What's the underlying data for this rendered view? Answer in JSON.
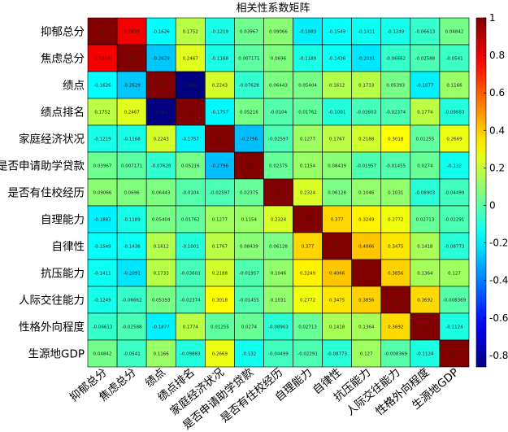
{
  "chart_data": {
    "type": "heatmap",
    "title": "相关性系数矩阵",
    "labels": [
      "抑郁总分",
      "焦虑总分",
      "绩点",
      "绩点排名",
      "家庭经济状况",
      "是否申请助学贷款",
      "是否有住校经历",
      "自理能力",
      "自律性",
      "抗压能力",
      "人际交往能力",
      "性格外向程度",
      "生源地GDP"
    ],
    "matrix": [
      [
        "1",
        "0.7859",
        "-0.1626",
        "0.1752",
        "-0.1219",
        "0.03967",
        "0.09066",
        "-0.1883",
        "-0.1549",
        "-0.1411",
        "-0.1249",
        "-0.06613",
        "0.04842"
      ],
      [
        "0.7859",
        "1",
        "-0.2629",
        "0.2467",
        "-0.1168",
        "0.007171",
        "0.0696",
        "-0.1189",
        "-0.1436",
        "-0.2091",
        "-0.06662",
        "-0.02588",
        "-0.0541"
      ],
      [
        "-0.1626",
        "-0.2629",
        "1",
        "-0.861",
        "0.2243",
        "-0.07628",
        "0.06443",
        "0.05404",
        "0.1612",
        "0.1733",
        "0.05393",
        "-0.1877",
        "0.1166"
      ],
      [
        "0.1752",
        "0.2467",
        "-0.861",
        "1",
        "-0.1757",
        "0.05216",
        "-0.0104",
        "0.01762",
        "-0.1001",
        "-0.03603",
        "-0.02374",
        "0.1774",
        "-0.09883"
      ],
      [
        "-0.1219",
        "-0.1168",
        "0.2243",
        "-0.1757",
        "1",
        "-0.2796",
        "-0.02597",
        "0.1277",
        "0.1767",
        "0.2188",
        "0.3018",
        "0.01255",
        "0.2669"
      ],
      [
        "0.03967",
        "0.007171",
        "-0.07628",
        "0.05216",
        "-0.2796",
        "1",
        "0.02375",
        "0.1154",
        "0.08439",
        "-0.01957",
        "-0.01455",
        "0.0274",
        "-0.132"
      ],
      [
        "0.09066",
        "0.0696",
        "0.06443",
        "-0.0104",
        "-0.02597",
        "0.02375",
        "1",
        "0.2324",
        "0.06128",
        "0.1046",
        "0.1031",
        "-0.08903",
        "-0.04499"
      ],
      [
        "-0.1883",
        "-0.1189",
        "0.05404",
        "0.01762",
        "0.1277",
        "0.1154",
        "0.2324",
        "1",
        "0.377",
        "0.3249",
        "0.2772",
        "0.02713",
        "-0.02291"
      ],
      [
        "-0.1549",
        "-0.1436",
        "0.1612",
        "-0.1001",
        "0.1767",
        "0.08439",
        "0.06128",
        "0.377",
        "1",
        "0.4066",
        "0.3475",
        "0.1418",
        "-0.08773"
      ],
      [
        "-0.1411",
        "-0.2091",
        "0.1733",
        "-0.03603",
        "0.2188",
        "-0.01957",
        "0.1046",
        "0.3249",
        "0.4066",
        "1",
        "0.3856",
        "0.1364",
        "0.127"
      ],
      [
        "-0.1249",
        "-0.06662",
        "0.05393",
        "-0.02374",
        "0.3018",
        "-0.01455",
        "0.1031",
        "0.2772",
        "0.3475",
        "0.3856",
        "1",
        "0.3692",
        "-0.008369"
      ],
      [
        "-0.06613",
        "-0.02588",
        "-0.1877",
        "0.1774",
        "0.01255",
        "0.0274",
        "-0.08903",
        "0.02713",
        "0.1418",
        "0.1364",
        "0.3692",
        "1",
        "-0.1124"
      ],
      [
        "0.04842",
        "-0.0541",
        "0.1166",
        "-0.09883",
        "0.2669",
        "-0.132",
        "-0.04499",
        "-0.02291",
        "-0.08773",
        "0.127",
        "-0.008369",
        "-0.1124",
        "1"
      ]
    ],
    "colorbar": {
      "colormap": "jet",
      "range": [
        -0.861,
        1
      ],
      "ticks": [
        "1",
        "0.8",
        "0.6",
        "0.4",
        "0.2",
        "0",
        "-0.2",
        "-0.4",
        "-0.6",
        "-0.8"
      ]
    }
  }
}
